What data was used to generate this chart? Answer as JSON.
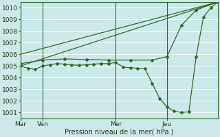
{
  "bg_color": "#cce8e8",
  "grid_color": "#ffffff",
  "line_color": "#2d6a2d",
  "title": "Pression niveau de la mer( hPa )",
  "ylim": [
    1000.5,
    1010.5
  ],
  "yticks": [
    1001,
    1002,
    1003,
    1004,
    1005,
    1006,
    1007,
    1008,
    1009,
    1010
  ],
  "xtick_labels": [
    "Mar",
    "Ven",
    "Mer",
    "Jeu"
  ],
  "xtick_positions": [
    0,
    18,
    78,
    120
  ],
  "total_hours": 162,
  "vline_positions": [
    0,
    18,
    78,
    120
  ],
  "series1_smooth": {
    "x": [
      0,
      6,
      12,
      18,
      24,
      30,
      36,
      42,
      48,
      54,
      60,
      66,
      72,
      78,
      84,
      90,
      96,
      102,
      108,
      114,
      120,
      126,
      132,
      138,
      144,
      150,
      156,
      162
    ],
    "y": [
      1005.0,
      1004.8,
      1004.7,
      1005.0,
      1005.1,
      1005.2,
      1005.15,
      1005.1,
      1005.05,
      1005.1,
      1005.15,
      1005.2,
      1005.2,
      1005.3,
      1004.9,
      1004.85,
      1004.8,
      1004.75,
      1003.5,
      1002.2,
      1001.5,
      1001.1,
      1001.0,
      1001.05,
      1005.8,
      1009.2,
      1010.0,
      1010.5
    ],
    "marker": "D",
    "markersize": 2.0
  },
  "series2_upper": {
    "x": [
      0,
      18,
      36,
      54,
      72,
      90,
      108,
      120,
      132,
      144,
      162
    ],
    "y": [
      1005.2,
      1005.5,
      1005.6,
      1005.55,
      1005.5,
      1005.5,
      1005.5,
      1005.8,
      1008.5,
      1009.8,
      1010.5
    ],
    "marker": "D",
    "markersize": 2.0
  },
  "series3_line": {
    "x": [
      0,
      162
    ],
    "y": [
      1006.0,
      1010.5
    ]
  },
  "series4_line": {
    "x": [
      0,
      162
    ],
    "y": [
      1005.0,
      1010.5
    ]
  }
}
